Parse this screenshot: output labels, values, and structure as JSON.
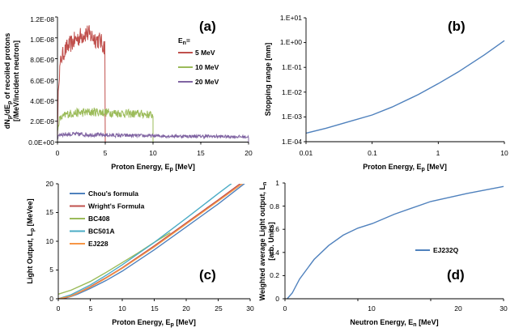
{
  "chart_data": [
    {
      "id": "a",
      "type": "line",
      "panel_label": "(a)",
      "xlabel": "Proton Energy, E",
      "xlabel_sub": "p",
      "xlabel_unit": " [MeV]",
      "ylabel_line1_a": "dN",
      "ylabel_line1_sub1": "p",
      "ylabel_line1_b": "/dE",
      "ylabel_line1_sub2": "p",
      "ylabel_line1_c": " of recoiled protons",
      "ylabel_line2": "[/MeV/incident neutron]",
      "xlim": [
        0,
        20
      ],
      "ylim": [
        0,
        1.2e-08
      ],
      "xticks": [
        "0",
        "5",
        "10",
        "15",
        "20"
      ],
      "yticks": [
        "0.0E+00",
        "2.0E-09",
        "4.0E-09",
        "6.0E-09",
        "8.0E-09",
        "1.0E-08",
        "1.2E-08"
      ],
      "legend_title": "E",
      "legend_title_sub": "n",
      "legend_title_suffix": "=",
      "legend_position": "right",
      "series": [
        {
          "name": "5 MeV",
          "color": "#c0504d",
          "xmax": 5.0,
          "x": [
            0.0,
            0.1,
            0.3,
            0.5,
            1.0,
            1.5,
            2.0,
            2.5,
            3.0,
            3.5,
            4.0,
            4.5,
            4.8
          ],
          "y": [
            7e-10,
            5.5e-09,
            7.6e-09,
            8.3e-09,
            9.1e-09,
            9.5e-09,
            9.9e-09,
            1.02e-08,
            1.05e-08,
            1.02e-08,
            9.9e-09,
            9.7e-09,
            9.2e-09
          ]
        },
        {
          "name": "10 MeV",
          "color": "#9bbb59",
          "xmax": 10.0,
          "x": [
            0.0,
            0.2,
            1.0,
            2.0,
            3.0,
            4.0,
            5.0,
            6.0,
            7.0,
            8.0,
            9.0,
            9.8
          ],
          "y": [
            1e-09,
            2.2e-09,
            2.7e-09,
            2.8e-09,
            2.85e-09,
            2.9e-09,
            2.85e-09,
            2.8e-09,
            2.75e-09,
            2.7e-09,
            2.7e-09,
            2.6e-09
          ]
        },
        {
          "name": "20 MeV",
          "color": "#8064a2",
          "xmax": 20.0,
          "x": [
            0.0,
            0.2,
            2.0,
            4.0,
            6.0,
            8.0,
            10.0,
            12.0,
            14.0,
            16.0,
            18.0,
            19.8
          ],
          "y": [
            3e-10,
            7.5e-10,
            7.5e-10,
            7e-10,
            6.5e-10,
            6.2e-10,
            6e-10,
            5.8e-10,
            5.6e-10,
            5.5e-10,
            5.3e-10,
            5e-10
          ]
        }
      ]
    },
    {
      "id": "b",
      "type": "line",
      "panel_label": "(b)",
      "xlabel": "Proton Energy, E",
      "xlabel_sub": "p",
      "xlabel_unit": " [MeV]",
      "ylabel": "Stopping range [mm]",
      "xscale": "log",
      "yscale": "log",
      "xlim": [
        0.01,
        10
      ],
      "ylim": [
        0.0001,
        10
      ],
      "xticks": [
        "0.01",
        "0.1",
        "1",
        "10"
      ],
      "yticks": [
        "1.E-04",
        "1.E-03",
        "1.E-02",
        "1.E-01",
        "1.E+00",
        "1.E+01"
      ],
      "series": [
        {
          "color": "#4f81bd",
          "x": [
            0.01,
            0.02,
            0.05,
            0.1,
            0.2,
            0.5,
            1,
            2,
            5,
            10
          ],
          "y": [
            0.00022,
            0.00035,
            0.0007,
            0.0012,
            0.0025,
            0.008,
            0.022,
            0.065,
            0.32,
            1.2
          ]
        }
      ]
    },
    {
      "id": "c",
      "type": "line",
      "panel_label": "(c)",
      "xlabel": "Proton Energy, E",
      "xlabel_sub": "p",
      "xlabel_unit": " [MeV]",
      "ylabel_a": "Light Output, L",
      "ylabel_sub": "p",
      "ylabel_b": " [MeVee]",
      "xlim": [
        0,
        30
      ],
      "ylim": [
        0,
        20
      ],
      "xticks": [
        "0",
        "5",
        "10",
        "15",
        "20",
        "25",
        "30"
      ],
      "yticks": [
        "0",
        "5",
        "10",
        "15",
        "20"
      ],
      "legend_position": "top-left",
      "series": [
        {
          "name": "Chou's formula",
          "color": "#4f81bd",
          "x": [
            0,
            1,
            2,
            3,
            5,
            7.5,
            10,
            15,
            20,
            25,
            30
          ],
          "y": [
            0,
            0.1,
            0.4,
            0.8,
            1.8,
            3.2,
            4.8,
            8.5,
            12.5,
            16.5,
            20.8
          ]
        },
        {
          "name": "Wright's Formula",
          "color": "#c0504d",
          "x": [
            0,
            1,
            2,
            3,
            5,
            7.5,
            10,
            15,
            20,
            25,
            30
          ],
          "y": [
            0,
            0.15,
            0.5,
            1.0,
            2.1,
            3.7,
            5.4,
            9.2,
            13.2,
            17.2,
            21.3
          ]
        },
        {
          "name": "BC408",
          "color": "#9bbb59",
          "x": [
            0,
            2,
            5,
            7.5,
            10,
            12.5,
            15,
            17.5
          ],
          "y": [
            0.8,
            1.5,
            3.0,
            4.6,
            6.3,
            8.0,
            9.8,
            11.5
          ]
        },
        {
          "name": "BC501A",
          "color": "#4bacc6",
          "x": [
            0,
            2,
            5,
            7.5,
            10,
            15,
            20,
            25,
            30
          ],
          "y": [
            0,
            0.7,
            2.4,
            4.1,
            5.9,
            9.8,
            14.0,
            18.3,
            22.5
          ]
        },
        {
          "name": "EJ228",
          "color": "#f79646",
          "x": [
            0,
            2,
            5,
            7.5,
            10,
            15,
            20,
            25,
            30
          ],
          "y": [
            0,
            0.45,
            2.0,
            3.6,
            5.3,
            9.0,
            13.0,
            17.0,
            21.0
          ]
        }
      ]
    },
    {
      "id": "d",
      "type": "line",
      "panel_label": "(d)",
      "xlabel": "Neutron Energy, E",
      "xlabel_sub": "n",
      "xlabel_unit": " [MeV]",
      "ylabel_line1_a": "Weighted average Light output, L",
      "ylabel_line1_sub": "n",
      "ylabel_line2": "[arb. Units]",
      "xlim": [
        0,
        30
      ],
      "ylim": [
        0,
        1.0
      ],
      "xticks": [
        "0",
        "10",
        "20",
        "30"
      ],
      "yticks": [
        "0",
        "0.2",
        "0.4",
        "0.6",
        "0.8",
        "1"
      ],
      "legend_position": "right",
      "series": [
        {
          "name": "EJ232Q",
          "color": "#4f81bd",
          "x": [
            0.3,
            1,
            2,
            4,
            6,
            8,
            10,
            12,
            15,
            20,
            25,
            30
          ],
          "y": [
            0.0,
            0.05,
            0.17,
            0.34,
            0.46,
            0.55,
            0.61,
            0.65,
            0.73,
            0.84,
            0.91,
            0.97
          ]
        }
      ]
    }
  ]
}
